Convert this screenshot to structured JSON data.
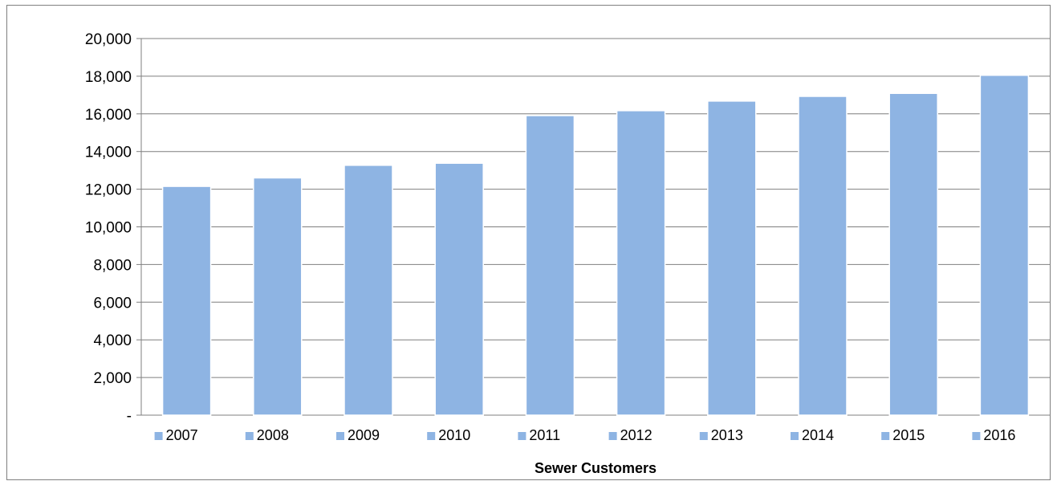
{
  "chart_data": {
    "type": "bar",
    "title": "",
    "xlabel": "Sewer Customers",
    "ylabel": "",
    "ylim": [
      0,
      20000
    ],
    "ytick_values": [
      0,
      2000,
      4000,
      6000,
      8000,
      10000,
      12000,
      14000,
      16000,
      18000,
      20000
    ],
    "ytick_labels": [
      "-",
      "2,000",
      "4,000",
      "6,000",
      "8,000",
      "10,000",
      "12,000",
      "14,000",
      "16,000",
      "18,000",
      "20,000"
    ],
    "grid": true,
    "legend": "bottom",
    "bar_color": "#8eb4e3",
    "categories": [
      "2007",
      "2008",
      "2009",
      "2010",
      "2011",
      "2012",
      "2013",
      "2014",
      "2015",
      "2016"
    ],
    "values": [
      12150,
      12600,
      13270,
      13380,
      15910,
      16170,
      16680,
      16930,
      17090,
      18050
    ]
  }
}
